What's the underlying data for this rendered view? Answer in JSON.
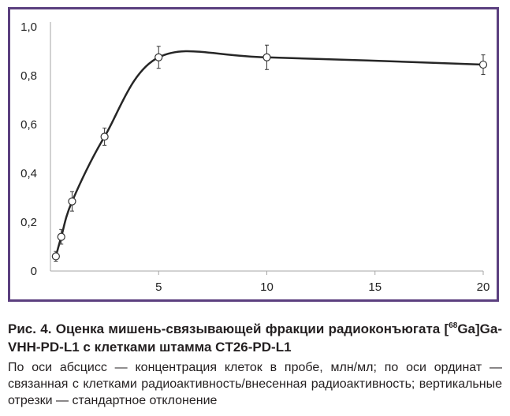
{
  "chart_data": {
    "type": "line",
    "title": "",
    "xlabel": "",
    "ylabel": "",
    "x": [
      0.25,
      0.5,
      1,
      2.5,
      5,
      10,
      20
    ],
    "series": [
      {
        "values": [
          0.06,
          0.14,
          0.285,
          0.55,
          0.875,
          0.875,
          0.845
        ],
        "errors": [
          0.02,
          0.03,
          0.04,
          0.035,
          0.045,
          0.05,
          0.04
        ]
      }
    ],
    "xlim": [
      0,
      20
    ],
    "ylim": [
      0,
      1.0
    ],
    "x_ticks": [
      5,
      10,
      15,
      20
    ],
    "x_tick_labels": [
      "5",
      "10",
      "15",
      "20"
    ],
    "y_ticks": [
      0,
      0.2,
      0.4,
      0.6,
      0.8,
      1.0
    ],
    "y_tick_labels": [
      "0",
      "0,2",
      "0,4",
      "0,6",
      "0,8",
      "1,0"
    ],
    "grid": false,
    "line_color": "#262626",
    "marker": "open-circle"
  },
  "colors": {
    "frame": "#5b3f7f",
    "axis": "#a6a6a6"
  },
  "caption": {
    "title_prefix": "Рис. 4. Оценка мишень-связывающей фракции радиоконъюгата [",
    "title_superscript": "68",
    "title_suffix": "Ga]Ga-VHH-PD-L1 с клетками штамма CT26-PD-L1",
    "note": "По оси абсцисс — концентрация клеток в пробе, млн/мл; по оси ординат — связанная с клетками радиоактивность/внесенная радиоактивность; вертикальные отрезки — стандартное отклонение"
  }
}
